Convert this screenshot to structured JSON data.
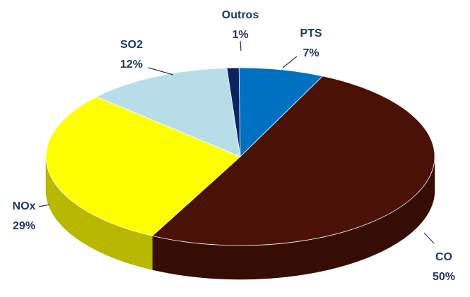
{
  "chart_data": {
    "type": "pie",
    "categories": [
      "Outros",
      "PTS",
      "CO",
      "NOx",
      "SO2"
    ],
    "values": [
      1,
      7,
      50,
      29,
      12
    ],
    "value_labels": [
      "1%",
      "7%",
      "50%",
      "29%",
      "12%"
    ],
    "colors": [
      "#0b2460",
      "#0070c0",
      "#4a1206",
      "#ffff00",
      "#b7dde8"
    ]
  }
}
